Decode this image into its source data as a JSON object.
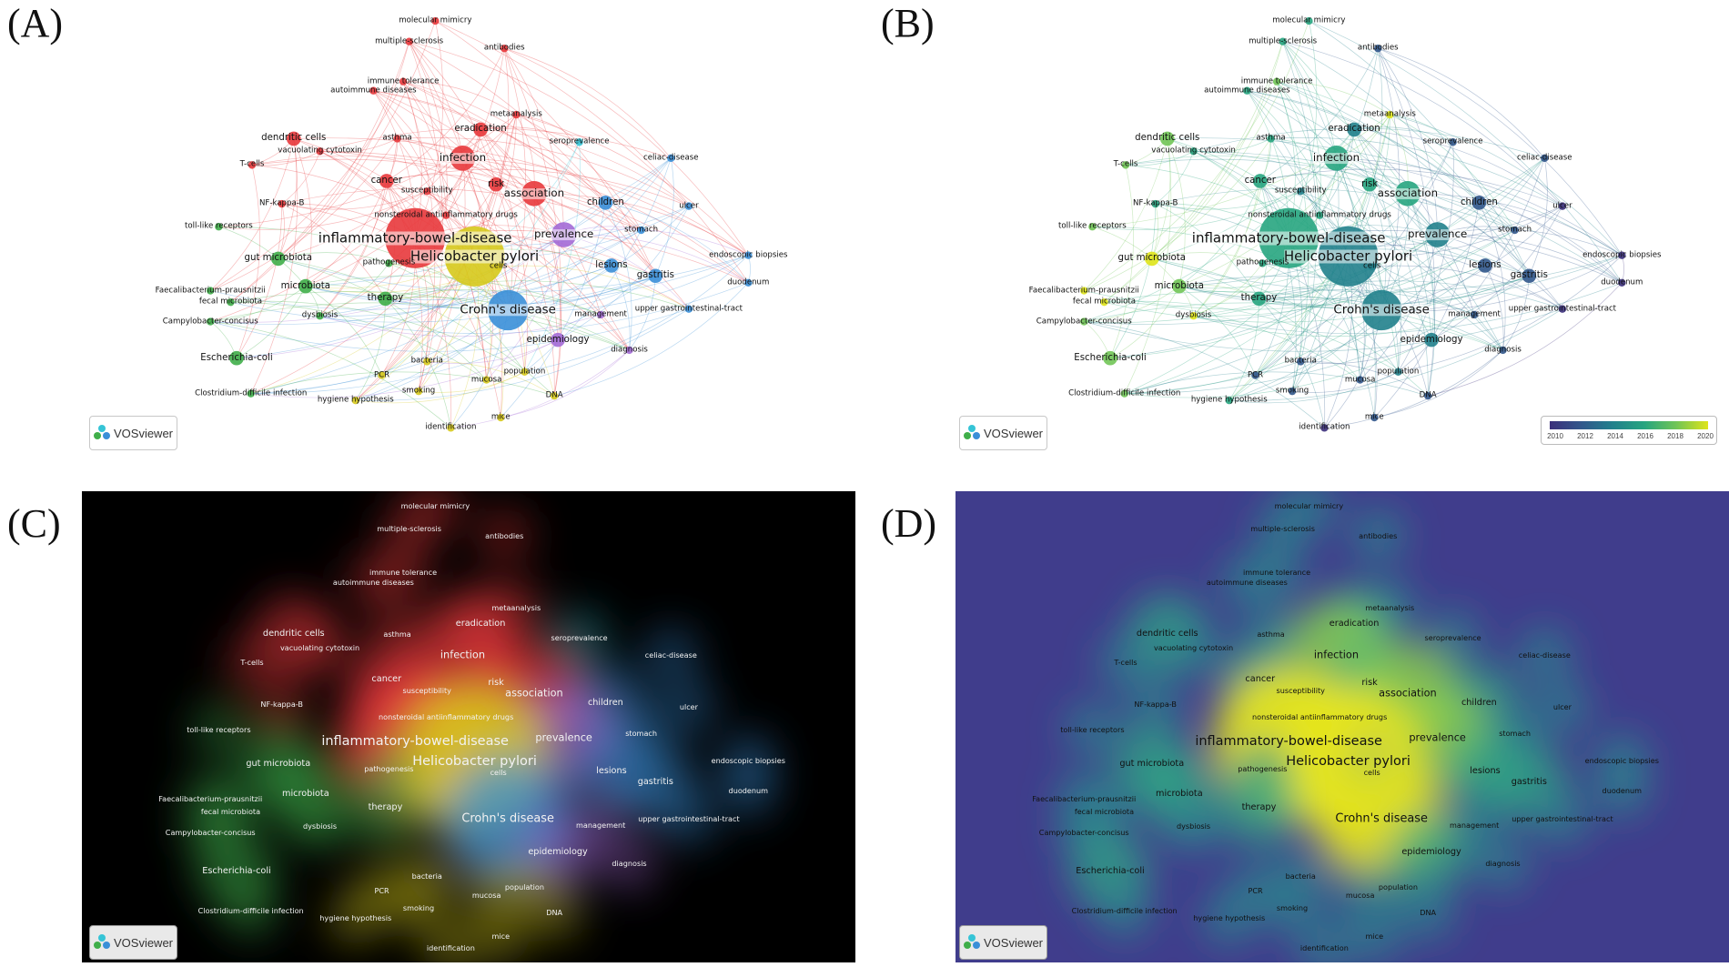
{
  "panels": [
    {
      "letter": "(A)",
      "type": "network"
    },
    {
      "letter": "(B)",
      "type": "overlay"
    },
    {
      "letter": "(C)",
      "type": "density-cluster"
    },
    {
      "letter": "(D)",
      "type": "density"
    }
  ],
  "logo_text": "VOSviewer",
  "overlay_scale": {
    "labels": [
      "2010",
      "2012",
      "2014",
      "2016",
      "2018",
      "2020"
    ],
    "colors": [
      "#3b2f7b",
      "#31578b",
      "#21818c",
      "#27a57f",
      "#71c556",
      "#dfe419"
    ]
  },
  "cluster_colors": {
    "red": "#e8393c",
    "green": "#3fae49",
    "blue": "#3a8fd8",
    "yellow": "#d6c91c",
    "purple": "#a36ad6",
    "cyan": "#35c4d6"
  },
  "terms": [
    {
      "id": "molecular-mimicry",
      "label": "molecular mimicry",
      "cluster": "red",
      "weight": 1,
      "year": 2016
    },
    {
      "id": "multiple-sclerosis",
      "label": "multiple-sclerosis",
      "cluster": "red",
      "weight": 1,
      "year": 2015
    },
    {
      "id": "antibodies",
      "label": "antibodies",
      "cluster": "red",
      "weight": 1,
      "year": 2012
    },
    {
      "id": "immune-tolerance",
      "label": "immune tolerance",
      "cluster": "red",
      "weight": 1,
      "year": 2018
    },
    {
      "id": "autoimmune-diseases",
      "label": "autoimmune diseases",
      "cluster": "red",
      "weight": 1,
      "year": 2016
    },
    {
      "id": "metaanalysis",
      "label": "metaanalysis",
      "cluster": "red",
      "weight": 1,
      "year": 2019
    },
    {
      "id": "eradication",
      "label": "eradication",
      "cluster": "red",
      "weight": 2,
      "year": 2014
    },
    {
      "id": "asthma",
      "label": "asthma",
      "cluster": "red",
      "weight": 1,
      "year": 2016
    },
    {
      "id": "dendritic-cells",
      "label": "dendritic cells",
      "cluster": "red",
      "weight": 2,
      "year": 2017
    },
    {
      "id": "vacuolating-cytotoxin",
      "label": "vacuolating cytotoxin",
      "cluster": "red",
      "weight": 1,
      "year": 2016
    },
    {
      "id": "infection",
      "label": "infection",
      "cluster": "red",
      "weight": 3,
      "year": 2015
    },
    {
      "id": "seroprevalence",
      "label": "seroprevalence",
      "cluster": "cyan",
      "weight": 1,
      "year": 2012
    },
    {
      "id": "celiac-disease",
      "label": "celiac-disease",
      "cluster": "blue",
      "weight": 1,
      "year": 2011
    },
    {
      "id": "t-cells",
      "label": "T-cells",
      "cluster": "red",
      "weight": 1,
      "year": 2017
    },
    {
      "id": "cancer",
      "label": "cancer",
      "cluster": "red",
      "weight": 2,
      "year": 2015
    },
    {
      "id": "susceptibility",
      "label": "susceptibility",
      "cluster": "red",
      "weight": 1,
      "year": 2014
    },
    {
      "id": "risk",
      "label": "risk",
      "cluster": "red",
      "weight": 2,
      "year": 2015
    },
    {
      "id": "association",
      "label": "association",
      "cluster": "red",
      "weight": 3,
      "year": 2015
    },
    {
      "id": "nf-kappa-b",
      "label": "NF-kappa-B",
      "cluster": "red",
      "weight": 1,
      "year": 2016
    },
    {
      "id": "children",
      "label": "children",
      "cluster": "blue",
      "weight": 2,
      "year": 2012
    },
    {
      "id": "ulcer",
      "label": "ulcer",
      "cluster": "blue",
      "weight": 1,
      "year": 2010
    },
    {
      "id": "nonsteroidal-antiinflammatory-drugs",
      "label": "nonsteroidal antiinflammatory drugs",
      "cluster": "red",
      "weight": 1,
      "year": 2015
    },
    {
      "id": "toll-like-receptors",
      "label": "toll-like receptors",
      "cluster": "green",
      "weight": 1,
      "year": 2018
    },
    {
      "id": "inflammatory-bowel-disease",
      "label": "inflammatory-bowel-disease",
      "cluster": "red",
      "weight": 5,
      "year": 2015
    },
    {
      "id": "prevalence",
      "label": "prevalence",
      "cluster": "purple",
      "weight": 3,
      "year": 2013
    },
    {
      "id": "stomach",
      "label": "stomach",
      "cluster": "blue",
      "weight": 1,
      "year": 2011
    },
    {
      "id": "helicobacter-pylori",
      "label": "Helicobacter pylori",
      "cluster": "yellow",
      "weight": 5,
      "year": 2014
    },
    {
      "id": "endoscopic-biopsies",
      "label": "endoscopic biopsies",
      "cluster": "blue",
      "weight": 1,
      "year": 2010
    },
    {
      "id": "gut-microbiota",
      "label": "gut microbiota",
      "cluster": "green",
      "weight": 2,
      "year": 2019
    },
    {
      "id": "pathogenesis",
      "label": "pathogenesis",
      "cluster": "green",
      "weight": 1,
      "year": 2016
    },
    {
      "id": "cells",
      "label": "cells",
      "cluster": "yellow",
      "weight": 1,
      "year": 2013
    },
    {
      "id": "lesions",
      "label": "lesions",
      "cluster": "blue",
      "weight": 2,
      "year": 2011
    },
    {
      "id": "gastritis",
      "label": "gastritis",
      "cluster": "blue",
      "weight": 2,
      "year": 2011
    },
    {
      "id": "duodenum",
      "label": "duodenum",
      "cluster": "blue",
      "weight": 1,
      "year": 2010
    },
    {
      "id": "faecalibacterium-prausnitzii",
      "label": "Faecalibacterium-prausnitzii",
      "cluster": "green",
      "weight": 1,
      "year": 2019
    },
    {
      "id": "microbiota",
      "label": "microbiota",
      "cluster": "green",
      "weight": 2,
      "year": 2018
    },
    {
      "id": "fecal-microbiota",
      "label": "fecal microbiota",
      "cluster": "green",
      "weight": 1,
      "year": 2019
    },
    {
      "id": "therapy",
      "label": "therapy",
      "cluster": "green",
      "weight": 2,
      "year": 2016
    },
    {
      "id": "crohns-disease",
      "label": "Crohn's disease",
      "cluster": "blue",
      "weight": 4,
      "year": 2013
    },
    {
      "id": "management",
      "label": "management",
      "cluster": "purple",
      "weight": 1,
      "year": 2011
    },
    {
      "id": "upper-gastrointestinal-tract",
      "label": "upper gastrointestinal-tract",
      "cluster": "blue",
      "weight": 1,
      "year": 2010
    },
    {
      "id": "campylobacter-concisus",
      "label": "Campylobacter-concisus",
      "cluster": "green",
      "weight": 1,
      "year": 2018
    },
    {
      "id": "dysbiosis",
      "label": "dysbiosis",
      "cluster": "green",
      "weight": 1,
      "year": 2019
    },
    {
      "id": "epidemiology",
      "label": "epidemiology",
      "cluster": "purple",
      "weight": 2,
      "year": 2013
    },
    {
      "id": "diagnosis",
      "label": "diagnosis",
      "cluster": "purple",
      "weight": 1,
      "year": 2012
    },
    {
      "id": "escherichia-coli",
      "label": "Escherichia-coli",
      "cluster": "green",
      "weight": 2,
      "year": 2017
    },
    {
      "id": "bacteria",
      "label": "bacteria",
      "cluster": "yellow",
      "weight": 1,
      "year": 2012
    },
    {
      "id": "population",
      "label": "population",
      "cluster": "yellow",
      "weight": 1,
      "year": 2013
    },
    {
      "id": "pcr",
      "label": "PCR",
      "cluster": "yellow",
      "weight": 1,
      "year": 2012
    },
    {
      "id": "mucosa",
      "label": "mucosa",
      "cluster": "yellow",
      "weight": 1,
      "year": 2011
    },
    {
      "id": "clostridium-difficile-infection",
      "label": "Clostridium-difficile infection",
      "cluster": "green",
      "weight": 1,
      "year": 2017
    },
    {
      "id": "smoking",
      "label": "smoking",
      "cluster": "yellow",
      "weight": 1,
      "year": 2012
    },
    {
      "id": "dna",
      "label": "DNA",
      "cluster": "yellow",
      "weight": 1,
      "year": 2011
    },
    {
      "id": "hygiene-hypothesis",
      "label": "hygiene hypothesis",
      "cluster": "yellow",
      "weight": 1,
      "year": 2016
    },
    {
      "id": "identification",
      "label": "identification",
      "cluster": "yellow",
      "weight": 1,
      "year": 2010
    },
    {
      "id": "mice",
      "label": "mice",
      "cluster": "yellow",
      "weight": 1,
      "year": 2011
    }
  ]
}
